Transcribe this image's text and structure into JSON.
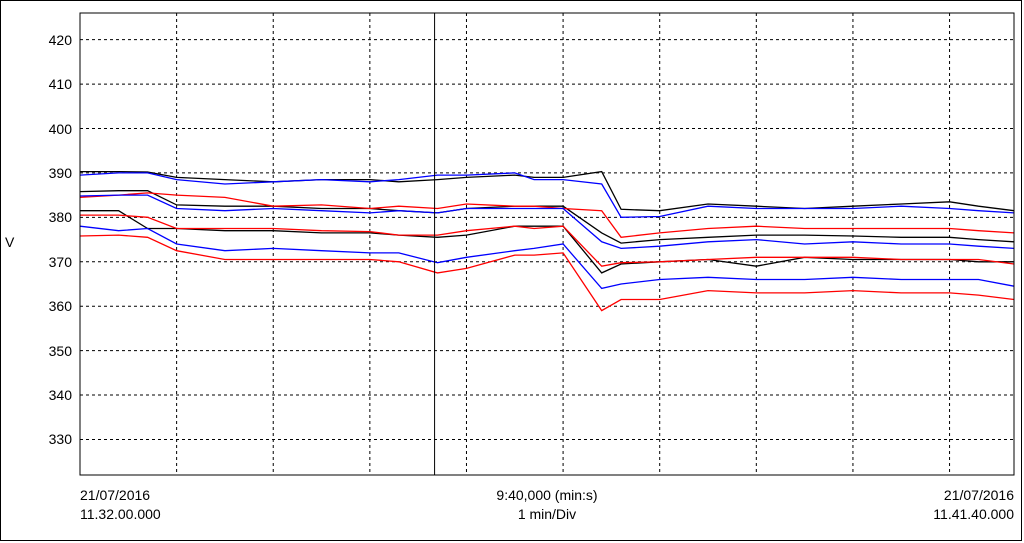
{
  "chart_data": {
    "type": "line",
    "ylabel": "V",
    "ylim": [
      322,
      426
    ],
    "yticks": [
      330,
      340,
      350,
      360,
      370,
      380,
      390,
      400,
      410,
      420
    ],
    "xlim": [
      0,
      9.667
    ],
    "grid": true,
    "x": [
      0,
      0.4,
      0.7,
      1,
      1.5,
      2,
      2.5,
      3,
      3.3,
      3.7,
      4,
      4.5,
      4.7,
      5,
      5.4,
      5.6,
      6,
      6.5,
      7,
      7.5,
      8,
      8.5,
      9,
      9.3,
      9.667
    ],
    "cursor_x": 3.67,
    "series": [
      {
        "color": "#000000",
        "values": [
          390.3,
          390.3,
          390.2,
          389.0,
          388.5,
          388.0,
          388.5,
          388.5,
          388.0,
          388.5,
          389.0,
          389.5,
          389.0,
          389.0,
          390.3,
          381.8,
          381.5,
          383.0,
          382.5,
          382.0,
          382.5,
          383.0,
          383.5,
          382.5,
          381.5
        ]
      },
      {
        "color": "#0000ff",
        "values": [
          389.5,
          390.0,
          390.0,
          388.5,
          387.5,
          388.0,
          388.5,
          388.0,
          388.5,
          389.5,
          389.5,
          390.0,
          388.5,
          388.5,
          387.5,
          380.0,
          380.2,
          382.5,
          382.0,
          382.0,
          382.0,
          382.5,
          382.0,
          381.5,
          381.0
        ]
      },
      {
        "color": "#000000",
        "values": [
          385.8,
          386.0,
          386.0,
          382.8,
          382.5,
          382.5,
          382.0,
          382.0,
          381.5,
          381.0,
          382.0,
          382.5,
          382.5,
          382.5,
          376.5,
          374.2,
          375.0,
          375.5,
          376.0,
          376.0,
          375.8,
          375.5,
          375.5,
          375.0,
          374.5
        ]
      },
      {
        "color": "#ff0000",
        "values": [
          384.5,
          385.0,
          385.5,
          385.0,
          384.5,
          382.5,
          382.8,
          382.0,
          382.5,
          382.0,
          383.0,
          382.5,
          382.5,
          382.0,
          381.5,
          375.5,
          376.5,
          377.5,
          378.0,
          377.5,
          377.5,
          377.5,
          377.5,
          377.0,
          376.5
        ]
      },
      {
        "color": "#0000ff",
        "values": [
          384.8,
          385.0,
          385.0,
          382.0,
          381.5,
          382.0,
          381.5,
          381.0,
          381.5,
          381.0,
          382.0,
          382.0,
          382.0,
          382.0,
          374.5,
          373.0,
          373.5,
          374.5,
          375.0,
          374.0,
          374.5,
          374.0,
          374.0,
          373.5,
          373.0
        ]
      },
      {
        "color": "#000000",
        "values": [
          381.5,
          381.5,
          377.5,
          377.5,
          377.0,
          377.0,
          376.5,
          376.5,
          376.0,
          375.5,
          376.0,
          378.0,
          378.0,
          378.0,
          367.5,
          369.5,
          370.0,
          370.5,
          369.0,
          371.0,
          370.5,
          370.5,
          370.5,
          370.0,
          370.0
        ]
      },
      {
        "color": "#ff0000",
        "values": [
          380.5,
          380.5,
          380.0,
          377.5,
          377.5,
          377.5,
          377.0,
          376.8,
          376.0,
          376.0,
          377.0,
          378.0,
          377.5,
          378.0,
          369.0,
          369.8,
          370.0,
          370.5,
          371.0,
          371.0,
          371.0,
          370.5,
          370.5,
          370.5,
          369.5
        ]
      },
      {
        "color": "#0000ff",
        "values": [
          378.0,
          377.0,
          377.5,
          374.0,
          372.5,
          373.0,
          372.5,
          372.0,
          372.0,
          369.8,
          371.0,
          372.5,
          373.0,
          374.0,
          364.0,
          365.0,
          366.0,
          366.5,
          366.0,
          366.0,
          366.5,
          366.0,
          366.0,
          366.0,
          364.5
        ]
      },
      {
        "color": "#ff0000",
        "values": [
          375.8,
          376.0,
          375.5,
          372.5,
          370.5,
          370.5,
          370.5,
          370.5,
          370.0,
          367.5,
          368.5,
          371.5,
          371.5,
          372.0,
          359.0,
          361.5,
          361.5,
          363.5,
          363.0,
          363.0,
          363.5,
          363.0,
          363.0,
          362.5,
          361.5
        ]
      }
    ],
    "xticklabels": {
      "left_top": "21/07/2016",
      "left_bottom": "11.32.00.000",
      "center_top": "9:40,000 (min:s)",
      "center_bottom": "1 min/Div",
      "right_top": "21/07/2016",
      "right_bottom": "11.41.40.000"
    }
  }
}
